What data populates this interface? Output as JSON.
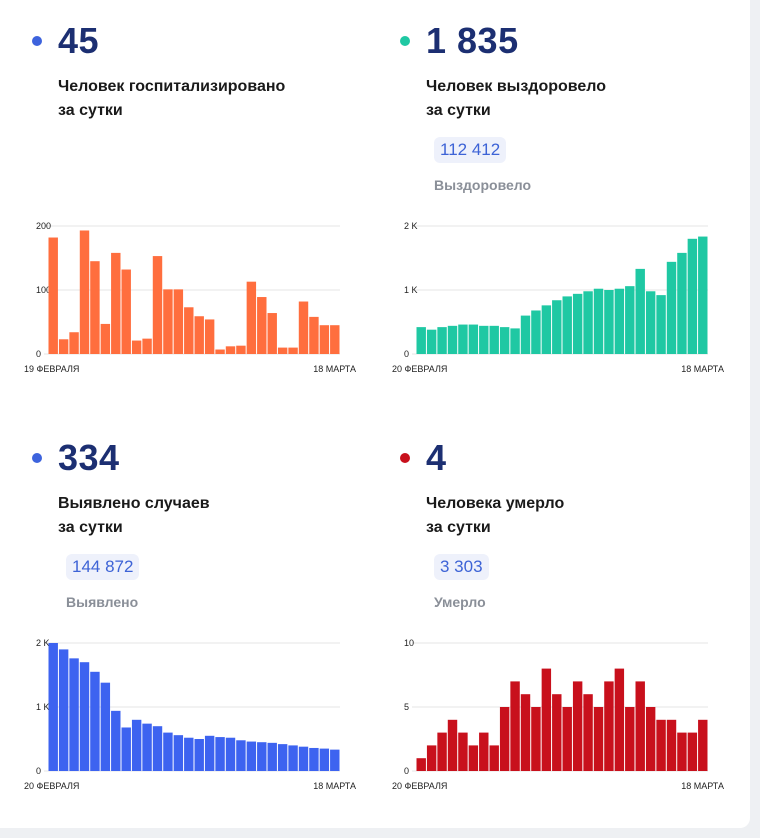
{
  "panels": [
    {
      "value": "45",
      "desc_line1": "Человек госпитализировано",
      "desc_line2": "за сутки",
      "dot_color": "#3d63dd",
      "total": null,
      "total_label": null
    },
    {
      "value": "1 835",
      "desc_line1": "Человек выздоровело",
      "desc_line2": "за сутки",
      "dot_color": "#1fc8a3",
      "total": "112 412",
      "total_label": "Выздоровело"
    },
    {
      "value": "334",
      "desc_line1": "Выявлено случаев",
      "desc_line2": "за сутки",
      "dot_color": "#3d63dd",
      "total": "144 872",
      "total_label": "Выявлено"
    },
    {
      "value": "4",
      "desc_line1": "Человека умерло",
      "desc_line2": "за сутки",
      "dot_color": "#c8101c",
      "total": "3 303",
      "total_label": "Умерло"
    }
  ],
  "chart_data": [
    {
      "type": "bar",
      "color": "#ff6e3e",
      "x_start_label": "19 ФЕВРАЛЯ",
      "x_end_label": "18 МАРТА",
      "ylim": [
        0,
        200
      ],
      "yticks": [
        0,
        100,
        200
      ],
      "ytick_labels": [
        "0",
        "100",
        "200"
      ],
      "values": [
        182,
        23,
        34,
        193,
        145,
        47,
        158,
        132,
        21,
        24,
        153,
        101,
        101,
        73,
        59,
        54,
        7,
        12,
        13,
        113,
        89,
        64,
        10,
        10,
        82,
        58,
        45,
        45
      ]
    },
    {
      "type": "bar",
      "color": "#1fc8a3",
      "x_start_label": "20 ФЕВРАЛЯ",
      "x_end_label": "18 МАРТА",
      "ylim": [
        0,
        2000
      ],
      "yticks": [
        0,
        1000,
        2000
      ],
      "ytick_labels": [
        "0",
        "1 K",
        "2 K"
      ],
      "values": [
        420,
        380,
        420,
        440,
        460,
        460,
        440,
        440,
        420,
        400,
        600,
        680,
        760,
        840,
        900,
        940,
        980,
        1020,
        1000,
        1020,
        1060,
        1330,
        980,
        920,
        1440,
        1580,
        1800,
        1835
      ]
    },
    {
      "type": "bar",
      "color": "#3d63f0",
      "x_start_label": "20 ФЕВРАЛЯ",
      "x_end_label": "18 МАРТА",
      "ylim": [
        0,
        2000
      ],
      "yticks": [
        0,
        1000,
        2000
      ],
      "ytick_labels": [
        "0",
        "1 K",
        "2 K"
      ],
      "values": [
        2000,
        1900,
        1760,
        1700,
        1550,
        1380,
        940,
        680,
        800,
        740,
        700,
        600,
        560,
        520,
        500,
        550,
        530,
        520,
        480,
        460,
        450,
        440,
        420,
        400,
        380,
        360,
        350,
        334
      ]
    },
    {
      "type": "bar",
      "color": "#c8101c",
      "x_start_label": "20 ФЕВРАЛЯ",
      "x_end_label": "18 МАРТА",
      "ylim": [
        0,
        10
      ],
      "yticks": [
        0,
        5,
        10
      ],
      "ytick_labels": [
        "0",
        "5",
        "10"
      ],
      "values": [
        1,
        2,
        3,
        4,
        3,
        2,
        3,
        2,
        5,
        7,
        6,
        5,
        8,
        6,
        5,
        7,
        6,
        5,
        7,
        8,
        5,
        7,
        5,
        4,
        4,
        3,
        3,
        4
      ]
    }
  ]
}
